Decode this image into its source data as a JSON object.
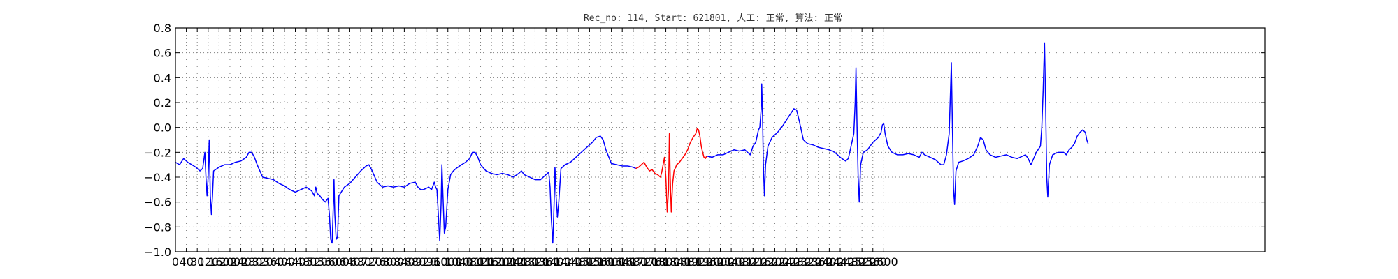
{
  "chart_data": {
    "type": "line",
    "title": "Rec_no: 114, Start: 621801, 人工: 正常, 算法: 正常",
    "xlabel": "",
    "ylabel": "",
    "xlim": [
      0,
      4000
    ],
    "ylim": [
      -1.0,
      0.8
    ],
    "grid": true,
    "y_ticks": [
      -1.0,
      -0.8,
      -0.6,
      -0.4,
      -0.2,
      0.0,
      0.2,
      0.4,
      0.6,
      0.8
    ],
    "y_tick_labels": [
      "−1.0",
      "−0.8",
      "−0.6",
      "−0.4",
      "−0.2",
      "0.0",
      "0.2",
      "0.4",
      "0.6",
      "0.8"
    ],
    "x_ticks": [
      0,
      40,
      80,
      120,
      160,
      200,
      240,
      280,
      320,
      360,
      400,
      440,
      480,
      520,
      560,
      600,
      640,
      680,
      720,
      760,
      800,
      840,
      880,
      920,
      960,
      1000,
      1040,
      1080,
      1120,
      1160,
      1200,
      1240,
      1280,
      1320,
      1360,
      1400,
      1440,
      1480,
      1520,
      1560,
      1600,
      1640,
      1680,
      1720,
      1760,
      1800,
      1840,
      1880,
      1920,
      1960,
      2000,
      2040,
      2080,
      2120,
      2160,
      2200,
      2240,
      2280,
      2320,
      2360,
      2400,
      2440,
      2480,
      2520,
      2560,
      2600
    ],
    "x_tick_labels": [
      "0",
      "40",
      "80",
      "120",
      "160",
      "200",
      "240",
      "280",
      "320",
      "360",
      "400",
      "440",
      "480",
      "520",
      "560",
      "600",
      "640",
      "680",
      "720",
      "760",
      "800",
      "840",
      "880",
      "920",
      "960",
      "1000",
      "1040",
      "1080",
      "1120",
      "1160",
      "1200",
      "1240",
      "1280",
      "1320",
      "1360",
      "1400",
      "1440",
      "1480",
      "1520",
      "1560",
      "1600",
      "1640",
      "1680",
      "1720",
      "1760",
      "1800",
      "1840",
      "1880",
      "1920",
      "1960",
      "2000",
      "2040",
      "2080",
      "2120",
      "2160",
      "2200",
      "2240",
      "2280",
      "2320",
      "2360",
      "2400",
      "2440",
      "2480",
      "2520",
      "2560",
      "2600"
    ],
    "series": [
      {
        "color": "#0000ff",
        "points": [
          [
            0,
            -0.28
          ],
          [
            15,
            -0.3
          ],
          [
            30,
            -0.25
          ],
          [
            45,
            -0.28
          ],
          [
            60,
            -0.3
          ],
          [
            75,
            -0.32
          ],
          [
            90,
            -0.35
          ],
          [
            100,
            -0.33
          ],
          [
            108,
            -0.2
          ],
          [
            112,
            -0.4
          ],
          [
            116,
            -0.55
          ],
          [
            120,
            -0.4
          ],
          [
            124,
            -0.1
          ],
          [
            128,
            -0.55
          ],
          [
            132,
            -0.7
          ],
          [
            136,
            -0.55
          ],
          [
            140,
            -0.35
          ],
          [
            160,
            -0.32
          ],
          [
            180,
            -0.3
          ],
          [
            200,
            -0.3
          ],
          [
            220,
            -0.28
          ],
          [
            240,
            -0.27
          ],
          [
            260,
            -0.24
          ],
          [
            270,
            -0.2
          ],
          [
            280,
            -0.2
          ],
          [
            290,
            -0.24
          ],
          [
            300,
            -0.3
          ],
          [
            320,
            -0.4
          ],
          [
            340,
            -0.41
          ],
          [
            360,
            -0.42
          ],
          [
            380,
            -0.45
          ],
          [
            400,
            -0.47
          ],
          [
            420,
            -0.5
          ],
          [
            440,
            -0.52
          ],
          [
            460,
            -0.5
          ],
          [
            480,
            -0.48
          ],
          [
            500,
            -0.51
          ],
          [
            510,
            -0.55
          ],
          [
            515,
            -0.48
          ],
          [
            520,
            -0.53
          ],
          [
            530,
            -0.55
          ],
          [
            540,
            -0.58
          ],
          [
            550,
            -0.6
          ],
          [
            560,
            -0.57
          ],
          [
            565,
            -0.7
          ],
          [
            570,
            -0.9
          ],
          [
            575,
            -0.93
          ],
          [
            580,
            -0.6
          ],
          [
            582,
            -0.42
          ],
          [
            585,
            -0.7
          ],
          [
            590,
            -0.9
          ],
          [
            595,
            -0.88
          ],
          [
            600,
            -0.55
          ],
          [
            620,
            -0.48
          ],
          [
            640,
            -0.45
          ],
          [
            660,
            -0.4
          ],
          [
            680,
            -0.35
          ],
          [
            700,
            -0.31
          ],
          [
            710,
            -0.3
          ],
          [
            720,
            -0.34
          ],
          [
            740,
            -0.44
          ],
          [
            760,
            -0.48
          ],
          [
            780,
            -0.47
          ],
          [
            800,
            -0.48
          ],
          [
            820,
            -0.47
          ],
          [
            840,
            -0.48
          ],
          [
            860,
            -0.45
          ],
          [
            880,
            -0.44
          ],
          [
            890,
            -0.48
          ],
          [
            900,
            -0.5
          ],
          [
            910,
            -0.5
          ],
          [
            920,
            -0.49
          ],
          [
            930,
            -0.48
          ],
          [
            940,
            -0.5
          ],
          [
            950,
            -0.44
          ],
          [
            955,
            -0.48
          ],
          [
            960,
            -0.5
          ],
          [
            965,
            -0.7
          ],
          [
            970,
            -0.91
          ],
          [
            975,
            -0.62
          ],
          [
            978,
            -0.3
          ],
          [
            982,
            -0.55
          ],
          [
            987,
            -0.85
          ],
          [
            992,
            -0.8
          ],
          [
            1000,
            -0.5
          ],
          [
            1010,
            -0.38
          ],
          [
            1020,
            -0.35
          ],
          [
            1030,
            -0.33
          ],
          [
            1050,
            -0.3
          ],
          [
            1065,
            -0.28
          ],
          [
            1080,
            -0.25
          ],
          [
            1090,
            -0.2
          ],
          [
            1100,
            -0.2
          ],
          [
            1110,
            -0.24
          ],
          [
            1120,
            -0.3
          ],
          [
            1140,
            -0.35
          ],
          [
            1160,
            -0.37
          ],
          [
            1180,
            -0.38
          ],
          [
            1200,
            -0.37
          ],
          [
            1220,
            -0.38
          ],
          [
            1240,
            -0.4
          ],
          [
            1260,
            -0.37
          ],
          [
            1270,
            -0.35
          ],
          [
            1280,
            -0.38
          ],
          [
            1300,
            -0.4
          ],
          [
            1320,
            -0.42
          ],
          [
            1340,
            -0.42
          ],
          [
            1350,
            -0.4
          ],
          [
            1360,
            -0.38
          ],
          [
            1370,
            -0.36
          ],
          [
            1375,
            -0.48
          ],
          [
            1380,
            -0.75
          ],
          [
            1385,
            -0.93
          ],
          [
            1390,
            -0.6
          ],
          [
            1393,
            -0.32
          ],
          [
            1397,
            -0.55
          ],
          [
            1402,
            -0.72
          ],
          [
            1407,
            -0.6
          ],
          [
            1415,
            -0.33
          ],
          [
            1430,
            -0.3
          ],
          [
            1450,
            -0.28
          ],
          [
            1470,
            -0.24
          ],
          [
            1490,
            -0.2
          ],
          [
            1510,
            -0.16
          ],
          [
            1530,
            -0.12
          ],
          [
            1545,
            -0.08
          ],
          [
            1560,
            -0.07
          ],
          [
            1570,
            -0.1
          ],
          [
            1580,
            -0.18
          ],
          [
            1600,
            -0.29
          ],
          [
            1620,
            -0.3
          ],
          [
            1640,
            -0.31
          ],
          [
            1660,
            -0.31
          ],
          [
            1680,
            -0.32
          ],
          [
            1690,
            -0.33
          ]
        ]
      },
      {
        "color": "#ff0000",
        "points": [
          [
            1690,
            -0.33
          ],
          [
            1700,
            -0.32
          ],
          [
            1710,
            -0.3
          ],
          [
            1720,
            -0.28
          ],
          [
            1730,
            -0.32
          ],
          [
            1740,
            -0.35
          ],
          [
            1750,
            -0.34
          ],
          [
            1760,
            -0.37
          ],
          [
            1770,
            -0.38
          ],
          [
            1780,
            -0.4
          ],
          [
            1785,
            -0.36
          ],
          [
            1790,
            -0.3
          ],
          [
            1795,
            -0.24
          ],
          [
            1800,
            -0.4
          ],
          [
            1805,
            -0.68
          ],
          [
            1810,
            -0.5
          ],
          [
            1813,
            -0.05
          ],
          [
            1816,
            -0.4
          ],
          [
            1820,
            -0.68
          ],
          [
            1825,
            -0.45
          ],
          [
            1830,
            -0.35
          ],
          [
            1840,
            -0.3
          ],
          [
            1850,
            -0.28
          ],
          [
            1860,
            -0.25
          ],
          [
            1870,
            -0.22
          ],
          [
            1880,
            -0.18
          ],
          [
            1890,
            -0.12
          ],
          [
            1900,
            -0.08
          ],
          [
            1910,
            -0.05
          ],
          [
            1915,
            -0.01
          ],
          [
            1920,
            -0.02
          ],
          [
            1925,
            -0.07
          ],
          [
            1930,
            -0.15
          ],
          [
            1935,
            -0.2
          ],
          [
            1940,
            -0.24
          ],
          [
            1945,
            -0.25
          ],
          [
            1950,
            -0.23
          ]
        ]
      },
      {
        "color": "#0000ff",
        "points": [
          [
            1950,
            -0.23
          ],
          [
            1970,
            -0.24
          ],
          [
            1990,
            -0.22
          ],
          [
            2010,
            -0.22
          ],
          [
            2030,
            -0.2
          ],
          [
            2050,
            -0.18
          ],
          [
            2070,
            -0.19
          ],
          [
            2090,
            -0.18
          ],
          [
            2100,
            -0.2
          ],
          [
            2110,
            -0.22
          ],
          [
            2120,
            -0.15
          ],
          [
            2130,
            -0.12
          ],
          [
            2140,
            -0.02
          ],
          [
            2145,
            0.0
          ],
          [
            2150,
            0.15
          ],
          [
            2152,
            0.35
          ],
          [
            2155,
            0.1
          ],
          [
            2158,
            -0.3
          ],
          [
            2162,
            -0.55
          ],
          [
            2166,
            -0.3
          ],
          [
            2175,
            -0.15
          ],
          [
            2190,
            -0.08
          ],
          [
            2210,
            -0.04
          ],
          [
            2225,
            0.0
          ],
          [
            2240,
            0.05
          ],
          [
            2255,
            0.1
          ],
          [
            2270,
            0.15
          ],
          [
            2280,
            0.14
          ],
          [
            2290,
            0.05
          ],
          [
            2305,
            -0.1
          ],
          [
            2320,
            -0.13
          ],
          [
            2340,
            -0.14
          ],
          [
            2360,
            -0.16
          ],
          [
            2380,
            -0.17
          ],
          [
            2400,
            -0.18
          ],
          [
            2420,
            -0.2
          ],
          [
            2440,
            -0.24
          ],
          [
            2460,
            -0.27
          ],
          [
            2470,
            -0.25
          ],
          [
            2480,
            -0.15
          ],
          [
            2490,
            -0.05
          ],
          [
            2495,
            0.2
          ],
          [
            2498,
            0.48
          ],
          [
            2502,
            0.0
          ],
          [
            2506,
            -0.4
          ],
          [
            2510,
            -0.6
          ],
          [
            2515,
            -0.3
          ],
          [
            2525,
            -0.2
          ],
          [
            2540,
            -0.18
          ],
          [
            2560,
            -0.12
          ],
          [
            2580,
            -0.08
          ],
          [
            2590,
            -0.04
          ],
          [
            2595,
            0.02
          ],
          [
            2600,
            0.03
          ],
          [
            2605,
            -0.05
          ],
          [
            2615,
            -0.15
          ],
          [
            2630,
            -0.2
          ],
          [
            2650,
            -0.22
          ],
          [
            2670,
            -0.22
          ],
          [
            2690,
            -0.21
          ],
          [
            2710,
            -0.22
          ],
          [
            2730,
            -0.24
          ],
          [
            2740,
            -0.2
          ],
          [
            2750,
            -0.22
          ],
          [
            2770,
            -0.24
          ],
          [
            2790,
            -0.26
          ],
          [
            2810,
            -0.3
          ],
          [
            2820,
            -0.3
          ],
          [
            2830,
            -0.22
          ],
          [
            2840,
            -0.05
          ],
          [
            2845,
            0.3
          ],
          [
            2848,
            0.52
          ],
          [
            2852,
            0.0
          ],
          [
            2856,
            -0.5
          ],
          [
            2860,
            -0.62
          ],
          [
            2865,
            -0.35
          ],
          [
            2875,
            -0.28
          ],
          [
            2890,
            -0.27
          ],
          [
            2910,
            -0.25
          ],
          [
            2930,
            -0.22
          ],
          [
            2945,
            -0.15
          ],
          [
            2955,
            -0.08
          ],
          [
            2965,
            -0.1
          ],
          [
            2975,
            -0.18
          ],
          [
            2990,
            -0.22
          ],
          [
            3010,
            -0.24
          ],
          [
            3030,
            -0.23
          ],
          [
            3050,
            -0.22
          ],
          [
            3070,
            -0.24
          ],
          [
            3090,
            -0.25
          ],
          [
            3110,
            -0.23
          ],
          [
            3120,
            -0.22
          ],
          [
            3130,
            -0.25
          ],
          [
            3140,
            -0.3
          ],
          [
            3150,
            -0.25
          ],
          [
            3160,
            -0.2
          ],
          [
            3175,
            -0.15
          ],
          [
            3180,
            0.0
          ],
          [
            3185,
            0.3
          ],
          [
            3190,
            0.68
          ],
          [
            3194,
            0.2
          ],
          [
            3198,
            -0.4
          ],
          [
            3202,
            -0.56
          ],
          [
            3208,
            -0.3
          ],
          [
            3220,
            -0.22
          ],
          [
            3240,
            -0.2
          ],
          [
            3260,
            -0.2
          ],
          [
            3270,
            -0.22
          ],
          [
            3280,
            -0.18
          ],
          [
            3290,
            -0.16
          ],
          [
            3300,
            -0.13
          ],
          [
            3310,
            -0.07
          ],
          [
            3320,
            -0.04
          ],
          [
            3330,
            -0.02
          ],
          [
            3340,
            -0.04
          ],
          [
            3345,
            -0.1
          ],
          [
            3350,
            -0.13
          ]
        ]
      }
    ]
  }
}
